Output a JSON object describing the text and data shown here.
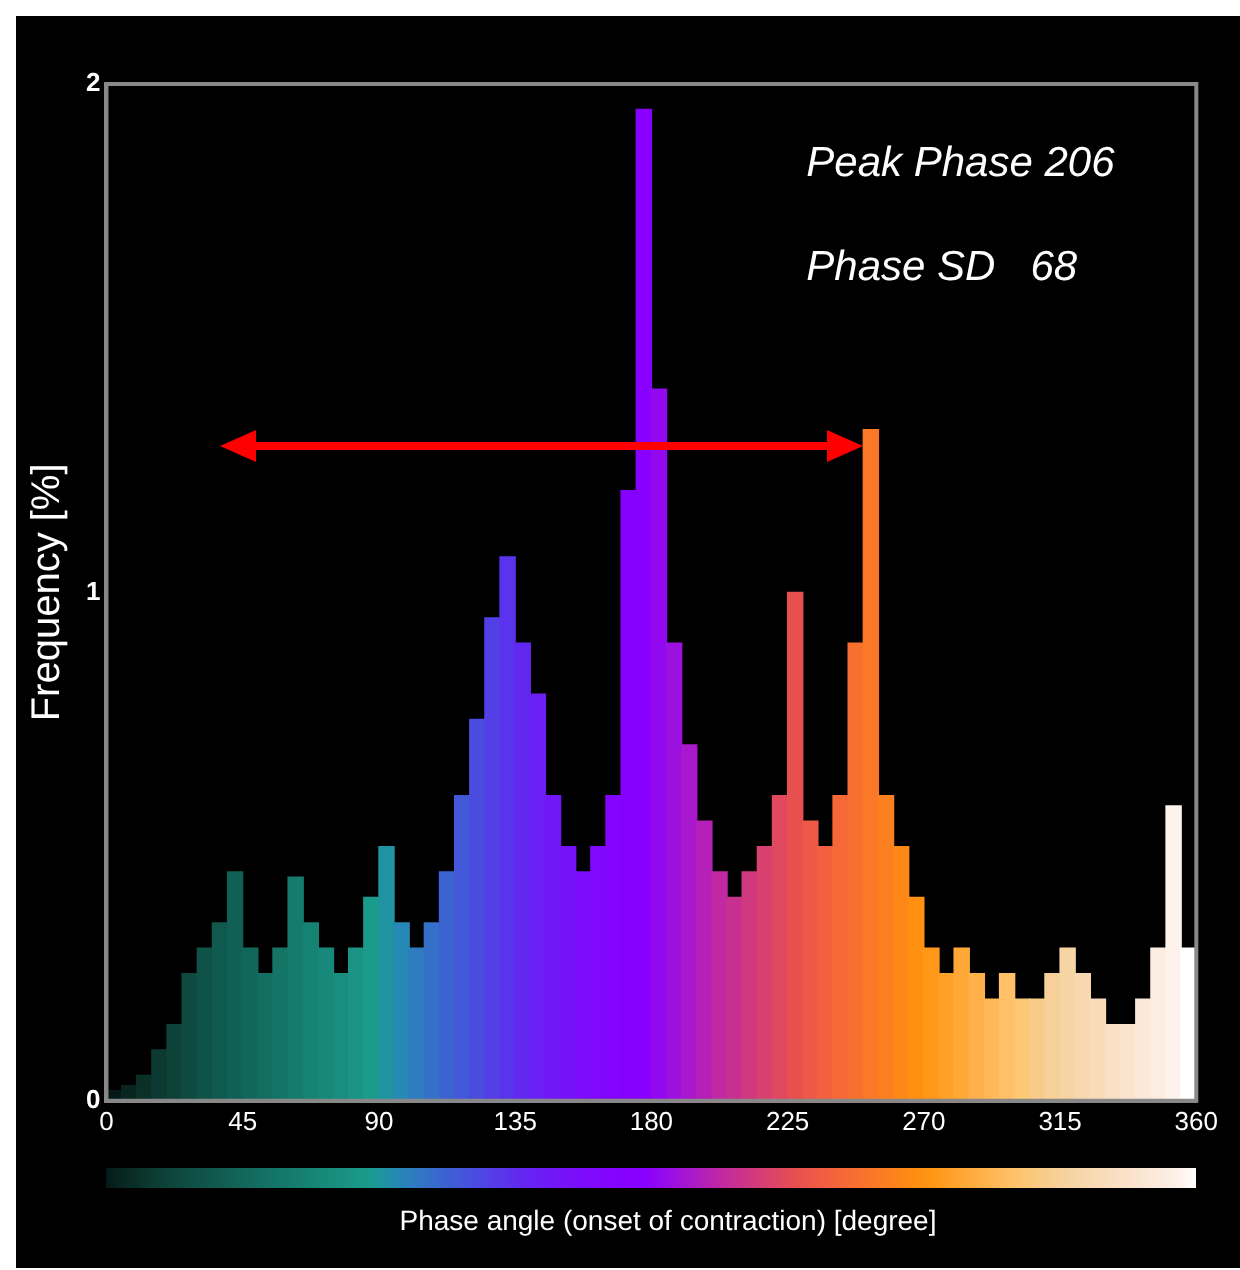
{
  "chart_data": {
    "type": "histogram",
    "xlabel": "Phase angle (onset of contraction) [degree]",
    "ylabel": "Frequency [%]",
    "annotations": [
      "Peak Phase 206",
      "Phase SD   68"
    ],
    "bins": [
      0,
      5,
      10,
      15,
      20,
      25,
      30,
      35,
      40,
      45,
      50,
      55,
      60,
      65,
      70,
      75,
      80,
      85,
      90,
      95,
      100,
      105,
      110,
      115,
      120,
      125,
      130,
      135,
      140,
      145,
      150,
      155,
      160,
      165,
      170,
      175,
      180,
      185,
      190,
      195,
      200,
      205,
      210,
      215,
      220,
      225,
      230,
      235,
      240,
      245,
      250,
      255,
      260,
      265,
      270,
      275,
      280,
      285,
      290,
      295,
      300,
      305,
      310,
      315,
      320,
      325,
      330,
      335,
      340,
      345,
      350,
      355,
      360
    ],
    "values": [
      0.02,
      0.03,
      0.05,
      0.1,
      0.15,
      0.25,
      0.3,
      0.35,
      0.45,
      0.3,
      0.25,
      0.3,
      0.44,
      0.35,
      0.3,
      0.25,
      0.3,
      0.4,
      0.5,
      0.35,
      0.3,
      0.35,
      0.45,
      0.6,
      0.75,
      0.95,
      1.07,
      0.9,
      0.8,
      0.6,
      0.5,
      0.45,
      0.5,
      0.6,
      1.2,
      1.95,
      1.4,
      0.9,
      0.7,
      0.55,
      0.45,
      0.4,
      0.45,
      0.5,
      0.6,
      1.0,
      0.55,
      0.5,
      0.6,
      0.9,
      1.32,
      0.6,
      0.5,
      0.4,
      0.3,
      0.25,
      0.3,
      0.25,
      0.2,
      0.25,
      0.2,
      0.2,
      0.25,
      0.3,
      0.25,
      0.2,
      0.15,
      0.15,
      0.2,
      0.3,
      0.58,
      0.3
    ],
    "colors": [
      "#051a18",
      "#08261f",
      "#0a3028",
      "#0c3a33",
      "#0d4239",
      "#0e4a40",
      "#0f5247",
      "#10594e",
      "#116055",
      "#12675b",
      "#136e61",
      "#147567",
      "#157b6d",
      "#168273",
      "#178879",
      "#188e7f",
      "#199485",
      "#1a9a8b",
      "#1f94a0",
      "#2688b4",
      "#2d7cc0",
      "#3470c8",
      "#3b64d0",
      "#4258d8",
      "#4a4ce0",
      "#5240e6",
      "#5a34ec",
      "#6228f0",
      "#6a20f4",
      "#7018f6",
      "#7612f8",
      "#7c0cfa",
      "#8008fc",
      "#8404fd",
      "#8600fe",
      "#8800ff",
      "#9208f0",
      "#9c10e0",
      "#a818cc",
      "#b420b8",
      "#c028a4",
      "#c83090",
      "#d03880",
      "#d84070",
      "#e04860",
      "#e85050",
      "#ee5848",
      "#f26040",
      "#f66838",
      "#f87030",
      "#fa7828",
      "#fc8020",
      "#fd8818",
      "#ff9010",
      "#ff9818",
      "#ffa028",
      "#ffa838",
      "#ffb048",
      "#ffb858",
      "#ffc068",
      "#fcc878",
      "#f8cc88",
      "#f6d098",
      "#f6d4a4",
      "#f8d8b0",
      "#f8dcba",
      "#fae0c4",
      "#fae4ce",
      "#fce8d8",
      "#fcece2",
      "#fef2ec",
      "#ffffff"
    ],
    "xlim": [
      0,
      360
    ],
    "xticks": [
      0,
      45,
      90,
      135,
      180,
      225,
      270,
      315,
      360
    ],
    "ylim": [
      0,
      2
    ],
    "yticks": [
      0,
      1,
      2
    ],
    "grid": false,
    "legend": false
  }
}
